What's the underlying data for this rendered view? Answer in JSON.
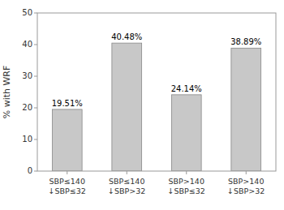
{
  "chart_data": {
    "type": "bar",
    "categories": [
      "SBP≤140\n↓SBP≤32",
      "SBP≤140\n↓SBP>32",
      "SBP>140\n↓SBP≤32",
      "SBP>140\n↓SBP>32"
    ],
    "values": [
      19.51,
      40.48,
      24.14,
      38.89
    ],
    "value_labels": [
      "19.51%",
      "40.48%",
      "24.14%",
      "38.89%"
    ],
    "data_labels": true,
    "color": "#c8c8c8",
    "ylabel": "% with WRF",
    "ylim": [
      0,
      50
    ],
    "yticks": [
      0,
      10,
      20,
      30,
      40,
      50
    ],
    "grid": false
  }
}
